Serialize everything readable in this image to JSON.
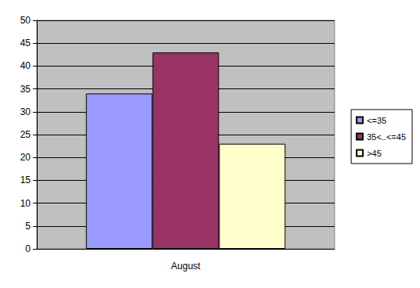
{
  "chart_data": {
    "type": "bar",
    "categories": [
      "August"
    ],
    "series": [
      {
        "name": "<=35",
        "color": "#9999ff",
        "values": [
          34
        ]
      },
      {
        "name": "35<..<=45",
        "color": "#993366",
        "values": [
          43
        ]
      },
      {
        "name": ">45",
        "color": "#ffffcc",
        "values": [
          23
        ]
      }
    ],
    "ylim": [
      0,
      50
    ],
    "yticks": [
      0,
      5,
      10,
      15,
      20,
      25,
      30,
      35,
      40,
      45,
      50
    ],
    "grid": true,
    "legend": "right"
  }
}
